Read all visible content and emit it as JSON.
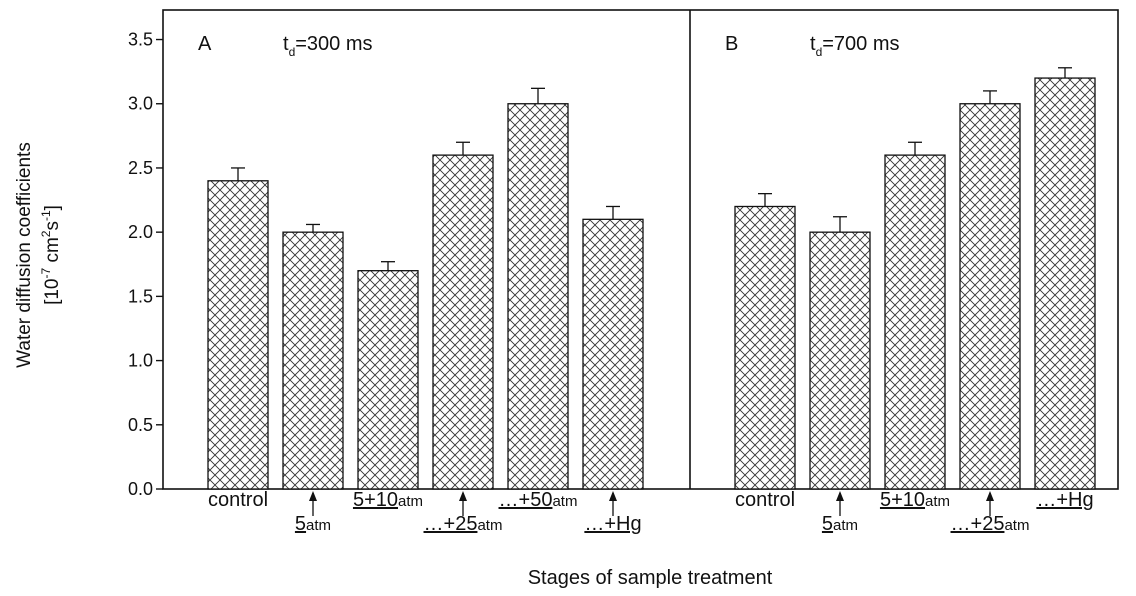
{
  "chart_data": [
    {
      "type": "bar",
      "panel": "A",
      "annotation": {
        "t": "t",
        "sub": "d",
        "text": "=300 ms"
      },
      "ylabel": {
        "line1": "Water diffusion coefficients",
        "line2": [
          "[10",
          "-7",
          " cm",
          "2",
          "s",
          "-1",
          "]"
        ]
      },
      "xlabel": "Stages of sample treatment",
      "categories": [
        "control",
        "5",
        "5+10",
        "…+25",
        "…+50",
        "…+Hg"
      ],
      "unit": "atm",
      "values": [
        2.4,
        2.0,
        1.7,
        2.6,
        3.0,
        2.1
      ],
      "errors": [
        0.1,
        0.06,
        0.07,
        0.1,
        0.12,
        0.1
      ],
      "color": "#333333",
      "ylim": [
        0,
        3.73
      ],
      "yticks": [
        {
          "value": 0,
          "label": "0.0"
        },
        {
          "value": 0.5,
          "label": "0.5"
        },
        {
          "value": 1,
          "label": "1.0"
        },
        {
          "value": 1.5,
          "label": "1.5"
        },
        {
          "value": 2,
          "label": "2.0"
        },
        {
          "value": 2.5,
          "label": "2.5"
        },
        {
          "value": 3,
          "label": "3.0"
        },
        {
          "value": 3.5,
          "label": "3.5"
        }
      ]
    },
    {
      "type": "bar",
      "panel": "B",
      "annotation": {
        "t": "t",
        "sub": "d",
        "text": "=700 ms"
      },
      "categories": [
        "control",
        "5",
        "5+10",
        "…+25",
        "…+Hg"
      ],
      "unit": "atm",
      "values": [
        2.2,
        2.0,
        2.6,
        3.0,
        3.2
      ],
      "errors": [
        0.1,
        0.12,
        0.1,
        0.1,
        0.08
      ],
      "color": "#333333",
      "ylim": [
        0,
        3.73
      ]
    }
  ]
}
